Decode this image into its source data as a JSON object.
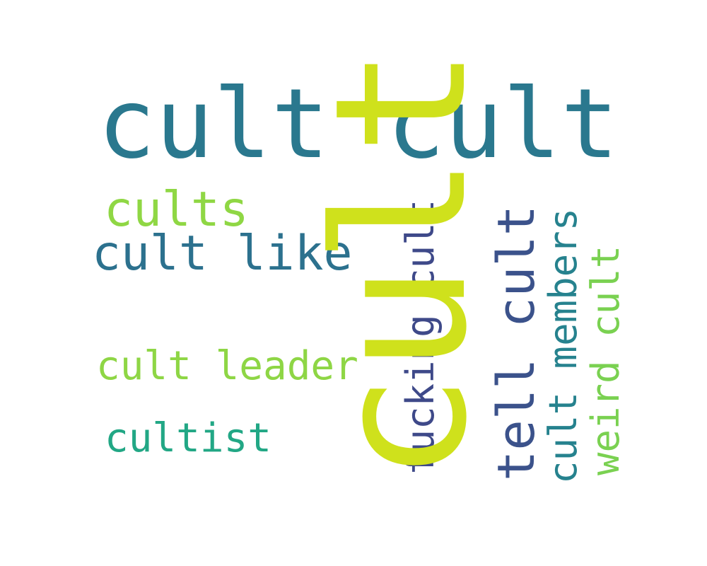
{
  "word_cloud": {
    "background": "#ffffff",
    "words": [
      {
        "id": "cult_big",
        "text": "cult",
        "orientation": "vertical",
        "color": "#cfe11c"
      },
      {
        "id": "cult_cult",
        "text": "cult cult",
        "orientation": "horizontal",
        "color": "#2a788e"
      },
      {
        "id": "cults",
        "text": "cults",
        "orientation": "horizontal",
        "color": "#8fd744"
      },
      {
        "id": "cult_like",
        "text": "cult like",
        "orientation": "horizontal",
        "color": "#2c718e"
      },
      {
        "id": "cult_leader",
        "text": "cult leader",
        "orientation": "horizontal",
        "color": "#8ed645"
      },
      {
        "id": "cultist",
        "text": "cultist",
        "orientation": "horizontal",
        "color": "#22a785"
      },
      {
        "id": "fucking_cult",
        "text": "fucking cult",
        "orientation": "vertical",
        "color": "#3e4989"
      },
      {
        "id": "tell_cult",
        "text": "tell cult",
        "orientation": "vertical",
        "color": "#3b528b"
      },
      {
        "id": "cult_members",
        "text": "cult members",
        "orientation": "vertical",
        "color": "#26828e"
      },
      {
        "id": "weird_cult",
        "text": "weird cult",
        "orientation": "vertical",
        "color": "#7ad151"
      }
    ]
  }
}
